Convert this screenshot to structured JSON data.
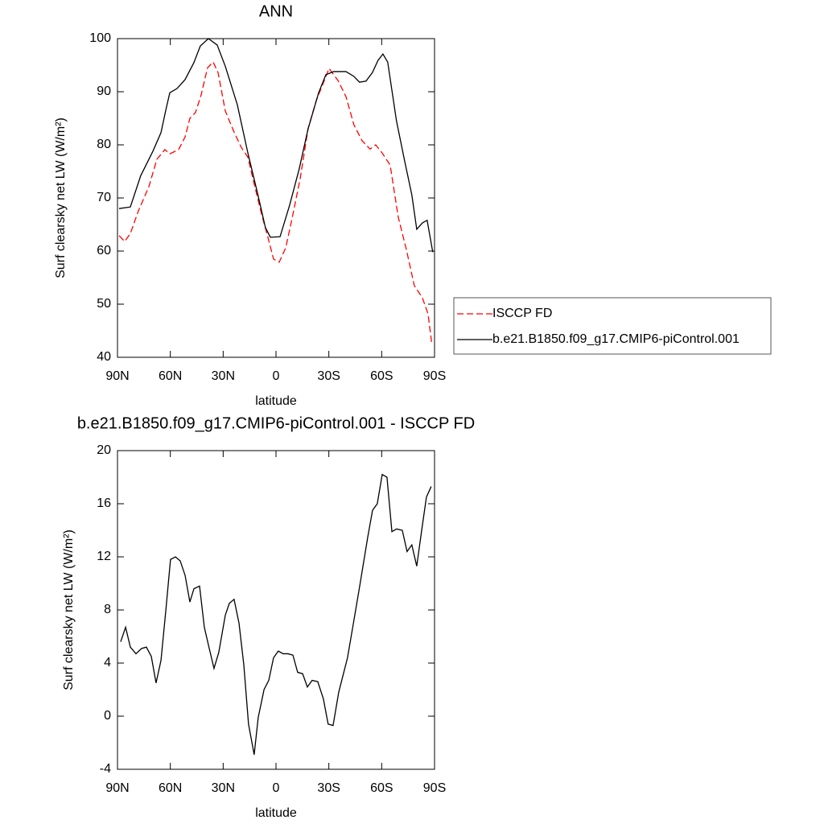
{
  "chart_data": [
    {
      "type": "line",
      "title": "ANN",
      "x_label": "latitude",
      "y_label": "Surf clearsky net LW (W/m²)",
      "xlim": [
        90,
        -90
      ],
      "xticks": [
        {
          "value": 90,
          "label": "90N"
        },
        {
          "value": 60,
          "label": "60N"
        },
        {
          "value": 30,
          "label": "30N"
        },
        0,
        {
          "value": -30,
          "label": "30S"
        },
        {
          "value": -60,
          "label": "60S"
        },
        {
          "value": -90,
          "label": "90S"
        }
      ],
      "ylim": [
        40,
        100
      ],
      "yticks": [
        40,
        50,
        60,
        70,
        80,
        90,
        100
      ],
      "legend": "right",
      "series": [
        {
          "name": "ISCCP FD",
          "color": "#ff0000",
          "style": "dashed",
          "x": [
            89.1,
            85.9,
            82.7,
            78.1,
            72.2,
            67.6,
            63.1,
            60.3,
            55.3,
            51.6,
            48.9,
            45.7,
            42.5,
            38.9,
            35.7,
            32.9,
            28.8,
            24.2,
            19.7,
            16,
            12.8,
            8.3,
            4.6,
            1.4,
            -1.8,
            -5.5,
            -9.1,
            -13.7,
            -18.2,
            -22.8,
            -27.4,
            -30.1,
            -35.2,
            -39.7,
            -44.2,
            -48.8,
            -53.4,
            -56.6,
            -60.2,
            -64.8,
            -69.4,
            -74,
            -78.5,
            -83.1,
            -86.3,
            -88.5
          ],
          "values": [
            62.9,
            61.8,
            63.3,
            67.6,
            72.1,
            77.3,
            79.1,
            78.3,
            79.1,
            81.5,
            85,
            86.1,
            89.4,
            94.5,
            95.6,
            93.6,
            86.4,
            82.7,
            79.5,
            77.7,
            73.2,
            67.1,
            62.6,
            58.5,
            57.9,
            60.6,
            66.1,
            73.6,
            83,
            88.3,
            92.1,
            94.4,
            92.1,
            89.1,
            83.8,
            80.8,
            79.2,
            80,
            78.5,
            76.2,
            66.4,
            60.3,
            53.5,
            51.2,
            48.2,
            42.4
          ]
        },
        {
          "name": "b.e21.B1850.f09_g17.CMIP6-piControl.001",
          "color": "#000000",
          "style": "solid",
          "x": [
            89.1,
            82.7,
            76.8,
            69.9,
            65.3,
            62.6,
            60.3,
            56.2,
            51.6,
            46.6,
            43,
            38.4,
            33.4,
            28.8,
            22,
            16,
            10.5,
            6,
            3.2,
            -2.3,
            -7.7,
            -13.2,
            -18.2,
            -24.2,
            -28.3,
            -32.8,
            -39.7,
            -44.2,
            -47.4,
            -51.1,
            -54.7,
            -57.9,
            -60.7,
            -63.4,
            -68.4,
            -73,
            -77.1,
            -79.9,
            -83.1,
            -85.8,
            -89
          ],
          "values": [
            68,
            68.3,
            74.2,
            78.8,
            82.3,
            86.5,
            89.8,
            90.6,
            92.3,
            95.5,
            98.6,
            100,
            98.8,
            94.8,
            87.6,
            78.5,
            70.9,
            64.4,
            62.6,
            62.7,
            68.6,
            75.5,
            83,
            89.8,
            93.2,
            93.8,
            93.8,
            92.9,
            91.8,
            92,
            93.6,
            95.9,
            97.1,
            95.6,
            84.5,
            77,
            70.6,
            64.1,
            65.3,
            65.8,
            59.8
          ]
        }
      ]
    },
    {
      "type": "line",
      "title": "b.e21.B1850.f09_g17.CMIP6-piControl.001 - ISCCP FD",
      "x_label": "latitude",
      "y_label": "Surf clearsky net LW (W/m²)",
      "xlim": [
        90,
        -90
      ],
      "xticks": [
        {
          "value": 90,
          "label": "90N"
        },
        {
          "value": 60,
          "label": "60N"
        },
        {
          "value": 30,
          "label": "30N"
        },
        0,
        {
          "value": -30,
          "label": "30S"
        },
        {
          "value": -60,
          "label": "60S"
        },
        {
          "value": -90,
          "label": "90S"
        }
      ],
      "ylim": [
        -4,
        20
      ],
      "yticks": [
        -4,
        0,
        4,
        8,
        12,
        16,
        20
      ],
      "series": [
        {
          "color": "#000000",
          "style": "solid",
          "x": [
            88.2,
            85.4,
            82.7,
            79.5,
            76.3,
            73.6,
            70.8,
            68.1,
            65.3,
            62.6,
            59.9,
            57.1,
            54.4,
            51.6,
            48.9,
            46.6,
            43.4,
            40.7,
            37.9,
            35.2,
            32.5,
            28.8,
            26.5,
            23.8,
            21,
            18.3,
            15.6,
            12.4,
            10.1,
            6.8,
            4.1,
            1.4,
            -1.3,
            -4.1,
            -6.8,
            -9.6,
            -12.3,
            -15.1,
            -17.8,
            -20.5,
            -23.7,
            -26.9,
            -29.6,
            -32.4,
            -35.6,
            -40.6,
            -44.2,
            -47.4,
            -52.1,
            -54.8,
            -57.5,
            -60.3,
            -63,
            -65.8,
            -68.5,
            -71.7,
            -74.4,
            -77.1,
            -79.9,
            -82.6,
            -85.4,
            -88.1
          ],
          "values": [
            5.6,
            6.7,
            5.2,
            4.7,
            5.1,
            5.2,
            4.5,
            2.5,
            4.2,
            7.9,
            11.8,
            12,
            11.7,
            10.6,
            8.6,
            9.6,
            9.8,
            6.7,
            5.1,
            3.6,
            4.8,
            7.6,
            8.5,
            8.8,
            7,
            3.9,
            -0.6,
            -2.9,
            -0.1,
            2,
            2.7,
            4.4,
            4.9,
            4.7,
            4.7,
            4.6,
            3.3,
            3.2,
            2.2,
            2.7,
            2.6,
            1.3,
            -0.6,
            -0.7,
            1.8,
            4.4,
            7.2,
            9.7,
            13.5,
            15.5,
            16,
            18.2,
            18,
            13.9,
            14.1,
            14,
            12.4,
            12.9,
            11.3,
            13.9,
            16.5,
            17.3
          ]
        }
      ]
    }
  ]
}
